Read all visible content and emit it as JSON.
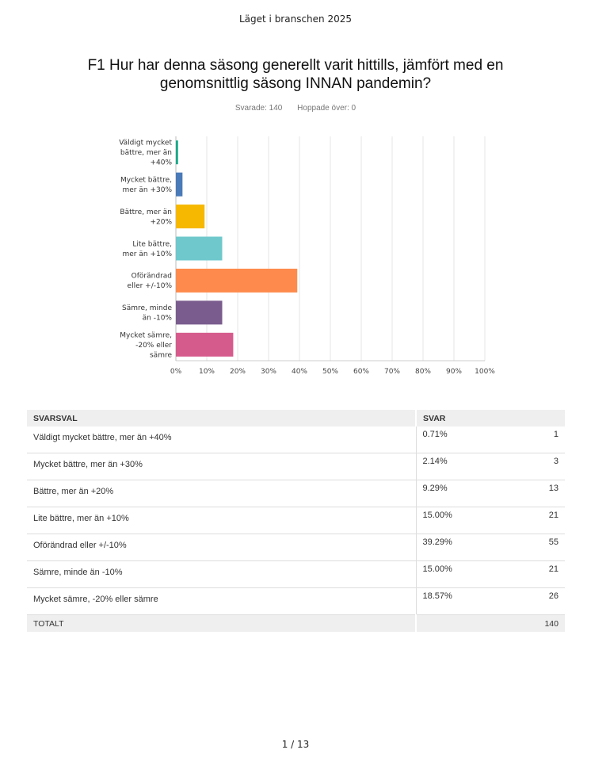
{
  "header": {
    "title": "Läget i branschen 2025"
  },
  "question": {
    "text": "F1 Hur har denna säsong generellt varit hittills, jämfört med en genomsnittlig säsong INNAN pandemin?"
  },
  "stats": {
    "answered": "Svarade: 140",
    "skipped": "Hoppade över: 0"
  },
  "chart_data": {
    "type": "bar",
    "orientation": "horizontal",
    "categories": [
      [
        "Väldigt mycket",
        "bättre, mer än",
        "+40%"
      ],
      [
        "Mycket bättre,",
        "mer än +30%"
      ],
      [
        "Bättre, mer än",
        "+20%"
      ],
      [
        "Lite bättre,",
        "mer än +10%"
      ],
      [
        "Oförändrad",
        "eller +/-10%"
      ],
      [
        "Sämre, minde",
        "än -10%"
      ],
      [
        "Mycket sämre,",
        "-20% eller",
        "sämre"
      ]
    ],
    "values": [
      0.71,
      2.14,
      9.29,
      15.0,
      39.29,
      15.0,
      18.57
    ],
    "colors": [
      "#1aa88a",
      "#4a7ab8",
      "#f6b800",
      "#6fc8cc",
      "#fe8b4d",
      "#7a5c8e",
      "#d65b8d"
    ],
    "xlim": [
      0,
      100
    ],
    "xticks": [
      "0%",
      "10%",
      "20%",
      "30%",
      "40%",
      "50%",
      "60%",
      "70%",
      "80%",
      "90%",
      "100%"
    ],
    "grid": true
  },
  "table": {
    "headers": {
      "option": "SVARSVAL",
      "answer": "SVAR"
    },
    "rows": [
      {
        "option": "Väldigt mycket bättre, mer än +40%",
        "percent": "0.71%",
        "count": "1"
      },
      {
        "option": "Mycket bättre, mer än +30%",
        "percent": "2.14%",
        "count": "3"
      },
      {
        "option": "Bättre, mer än +20%",
        "percent": "9.29%",
        "count": "13"
      },
      {
        "option": "Lite bättre, mer än +10%",
        "percent": "15.00%",
        "count": "21"
      },
      {
        "option": "Oförändrad eller +/-10%",
        "percent": "39.29%",
        "count": "55"
      },
      {
        "option": "Sämre, minde än -10%",
        "percent": "15.00%",
        "count": "21"
      },
      {
        "option": "Mycket sämre, -20% eller sämre",
        "percent": "18.57%",
        "count": "26"
      }
    ],
    "total": {
      "label": "TOTALT",
      "count": "140"
    }
  },
  "footer": {
    "page": "1 / 13"
  }
}
